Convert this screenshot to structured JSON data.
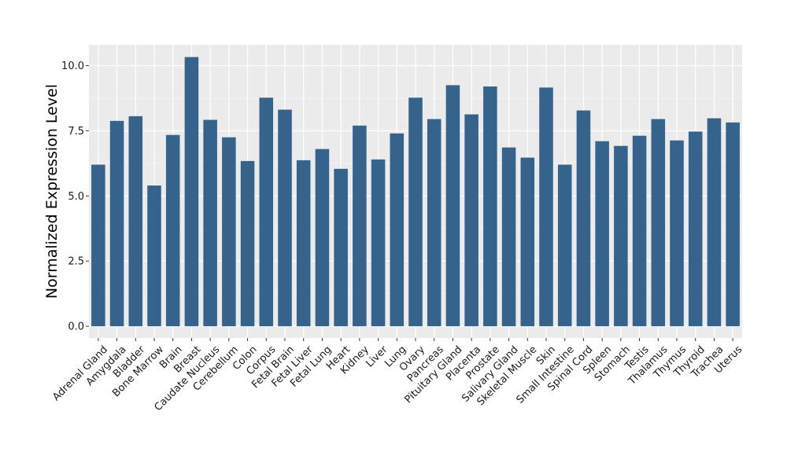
{
  "chart_data": {
    "type": "bar",
    "title": "",
    "xlabel": "",
    "ylabel": "Normalized Expression Level",
    "ylim": [
      -0.45,
      10.8
    ],
    "yticks": [
      0.0,
      2.5,
      5.0,
      7.5,
      10.0
    ],
    "ytick_labels": [
      "0.0",
      "2.5",
      "5.0",
      "7.5",
      "10.0"
    ],
    "grid": true,
    "legend": "none",
    "categories": [
      "Adrenal Gland",
      "Amygdala",
      "Bladder",
      "Bone Marrow",
      "Brain",
      "Breast",
      "Caudate Nucleus",
      "Cerebellum",
      "Colon",
      "Corpus",
      "Fetal Brain",
      "Fetal Liver",
      "Fetal Lung",
      "Heart",
      "Kidney",
      "Liver",
      "Lung",
      "Ovary",
      "Pancreas",
      "Pituitary Gland",
      "Placenta",
      "Prostate",
      "Salivary Gland",
      "Skeletal Muscle",
      "Skin",
      "Small Intestine",
      "Spinal Cord",
      "Spleen",
      "Stomach",
      "Testis",
      "Thalamus",
      "Thymus",
      "Thyroid",
      "Trachea",
      "Uterus"
    ],
    "values": [
      6.2,
      7.88,
      8.06,
      5.4,
      7.34,
      10.33,
      7.92,
      7.25,
      6.34,
      8.77,
      8.31,
      6.37,
      6.8,
      6.04,
      7.7,
      6.4,
      7.4,
      8.77,
      7.95,
      9.25,
      8.13,
      9.2,
      6.86,
      6.47,
      9.16,
      6.2,
      8.28,
      7.1,
      6.92,
      7.31,
      7.95,
      7.13,
      7.47,
      7.98,
      7.82
    ],
    "colors": {
      "bar": "#35638B",
      "panel": "#EBEBEB",
      "grid_major": "#FFFFFF",
      "grid_minor": "#F5F5F5",
      "text": "#000000"
    }
  }
}
